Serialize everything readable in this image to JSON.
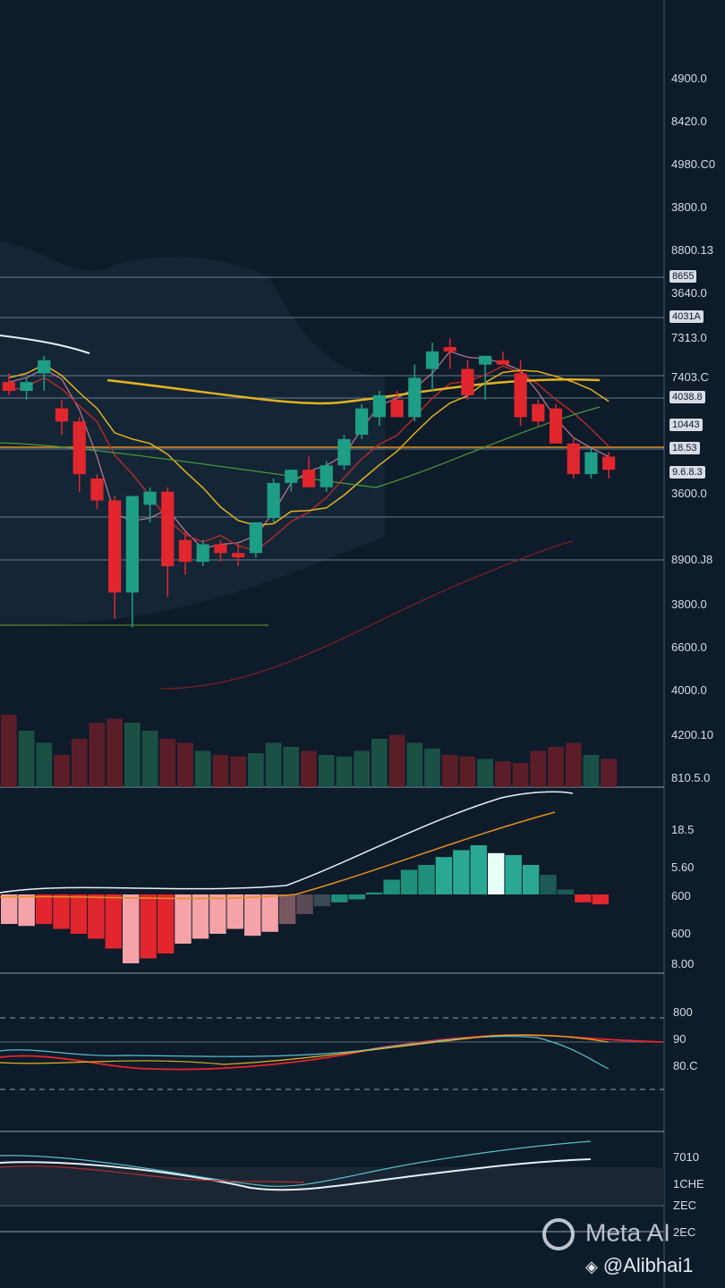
{
  "chart_data": [
    {
      "type": "candlestick",
      "title": "",
      "price_axis_ticks": [
        "4900.0",
        "8420.0",
        "4980.C0",
        "3800.0",
        "8800.13",
        "3640.0",
        "7313.0",
        "7403.C",
        "3600.0",
        "8900.J8",
        "3800.0",
        "6600.0",
        "4000.0",
        "4200.10",
        "810.5.0"
      ],
      "price_tags": [
        "8655",
        "4031A",
        "4038.8",
        "10443",
        "18.53",
        "9.6.8.3"
      ],
      "candles": [
        {
          "o": 0.72,
          "h": 0.74,
          "l": 0.69,
          "c": 0.7,
          "dir": "down"
        },
        {
          "o": 0.7,
          "h": 0.73,
          "l": 0.68,
          "c": 0.72,
          "dir": "up"
        },
        {
          "o": 0.74,
          "h": 0.78,
          "l": 0.7,
          "c": 0.77,
          "dir": "up"
        },
        {
          "o": 0.66,
          "h": 0.68,
          "l": 0.6,
          "c": 0.63,
          "dir": "down"
        },
        {
          "o": 0.63,
          "h": 0.64,
          "l": 0.47,
          "c": 0.51,
          "dir": "down"
        },
        {
          "o": 0.5,
          "h": 0.51,
          "l": 0.43,
          "c": 0.45,
          "dir": "down"
        },
        {
          "o": 0.45,
          "h": 0.46,
          "l": 0.18,
          "c": 0.24,
          "dir": "down"
        },
        {
          "o": 0.24,
          "h": 0.46,
          "l": 0.16,
          "c": 0.46,
          "dir": "up"
        },
        {
          "o": 0.44,
          "h": 0.48,
          "l": 0.4,
          "c": 0.47,
          "dir": "up"
        },
        {
          "o": 0.47,
          "h": 0.48,
          "l": 0.23,
          "c": 0.3,
          "dir": "down"
        },
        {
          "o": 0.36,
          "h": 0.38,
          "l": 0.28,
          "c": 0.31,
          "dir": "down"
        },
        {
          "o": 0.31,
          "h": 0.36,
          "l": 0.3,
          "c": 0.35,
          "dir": "up"
        },
        {
          "o": 0.35,
          "h": 0.36,
          "l": 0.31,
          "c": 0.33,
          "dir": "down"
        },
        {
          "o": 0.33,
          "h": 0.35,
          "l": 0.3,
          "c": 0.32,
          "dir": "down"
        },
        {
          "o": 0.33,
          "h": 0.4,
          "l": 0.32,
          "c": 0.4,
          "dir": "up"
        },
        {
          "o": 0.41,
          "h": 0.5,
          "l": 0.4,
          "c": 0.49,
          "dir": "up"
        },
        {
          "o": 0.49,
          "h": 0.52,
          "l": 0.47,
          "c": 0.52,
          "dir": "up"
        },
        {
          "o": 0.52,
          "h": 0.55,
          "l": 0.48,
          "c": 0.48,
          "dir": "down"
        },
        {
          "o": 0.48,
          "h": 0.54,
          "l": 0.47,
          "c": 0.53,
          "dir": "up"
        },
        {
          "o": 0.53,
          "h": 0.6,
          "l": 0.52,
          "c": 0.59,
          "dir": "up"
        },
        {
          "o": 0.6,
          "h": 0.67,
          "l": 0.59,
          "c": 0.66,
          "dir": "up"
        },
        {
          "o": 0.64,
          "h": 0.7,
          "l": 0.62,
          "c": 0.69,
          "dir": "up"
        },
        {
          "o": 0.68,
          "h": 0.7,
          "l": 0.64,
          "c": 0.64,
          "dir": "down"
        },
        {
          "o": 0.64,
          "h": 0.76,
          "l": 0.63,
          "c": 0.73,
          "dir": "up"
        },
        {
          "o": 0.75,
          "h": 0.81,
          "l": 0.7,
          "c": 0.79,
          "dir": "up"
        },
        {
          "o": 0.8,
          "h": 0.82,
          "l": 0.75,
          "c": 0.79,
          "dir": "down"
        },
        {
          "o": 0.75,
          "h": 0.77,
          "l": 0.68,
          "c": 0.69,
          "dir": "down"
        },
        {
          "o": 0.76,
          "h": 0.78,
          "l": 0.68,
          "c": 0.78,
          "dir": "up"
        },
        {
          "o": 0.77,
          "h": 0.79,
          "l": 0.76,
          "c": 0.76,
          "dir": "down"
        },
        {
          "o": 0.74,
          "h": 0.77,
          "l": 0.62,
          "c": 0.64,
          "dir": "down"
        },
        {
          "o": 0.67,
          "h": 0.68,
          "l": 0.62,
          "c": 0.63,
          "dir": "down"
        },
        {
          "o": 0.66,
          "h": 0.67,
          "l": 0.58,
          "c": 0.58,
          "dir": "down"
        },
        {
          "o": 0.58,
          "h": 0.59,
          "l": 0.5,
          "c": 0.51,
          "dir": "down"
        },
        {
          "o": 0.51,
          "h": 0.57,
          "l": 0.5,
          "c": 0.56,
          "dir": "up"
        },
        {
          "o": 0.55,
          "h": 0.56,
          "l": 0.5,
          "c": 0.52,
          "dir": "down"
        }
      ],
      "volume_axis_ticks": [
        "4200.10",
        "810.5.0"
      ]
    },
    {
      "type": "bar",
      "title": "",
      "axis_ticks": [
        "18.5",
        "5.60",
        "600",
        "600",
        "8.00"
      ],
      "values": [
        -0.3,
        -0.32,
        -0.3,
        -0.35,
        -0.4,
        -0.45,
        -0.55,
        -0.7,
        -0.65,
        -0.6,
        -0.5,
        -0.45,
        -0.4,
        -0.35,
        -0.42,
        -0.38,
        -0.3,
        -0.2,
        -0.12,
        -0.08,
        -0.05,
        0.02,
        0.15,
        0.25,
        0.3,
        0.38,
        0.45,
        0.5,
        0.42,
        0.4,
        0.3,
        0.2,
        0.05,
        -0.08,
        -0.1
      ],
      "colors": [
        "#f5a3a8",
        "#f5a3a8",
        "#e2262d",
        "#e2262d",
        "#e2262d",
        "#e2262d",
        "#e2262d",
        "#f5a3a8",
        "#e2262d",
        "#e2262d",
        "#f5a3a8",
        "#f5a3a8",
        "#f5a3a8",
        "#f5a3a8",
        "#f5a3a8",
        "#f5a3a8",
        "#7a5660",
        "#5a4a55",
        "#3a4a55",
        "#1f8f7a",
        "#1f8f7a",
        "#1f8f7a",
        "#1f8f7a",
        "#1f8f7a",
        "#1f8f7a",
        "#2aa893",
        "#2aa893",
        "#2aa893",
        "#eafff8",
        "#2aa893",
        "#2aa893",
        "#1d5a55",
        "#1d5a55",
        "#e2262d",
        "#e2262d"
      ]
    },
    {
      "type": "line",
      "title": "",
      "axis_ticks": [
        "800",
        "90",
        "80.C"
      ]
    },
    {
      "type": "line",
      "title": "",
      "axis_ticks": [
        "7010",
        "1CHE",
        "ZEC",
        "2EC"
      ]
    }
  ],
  "watermark": {
    "brand": "Meta AI",
    "handle": "@Alibhai1"
  },
  "colors": {
    "up": "#1f9e87",
    "down": "#e2262d",
    "bg": "#0d1b2a",
    "grid": "#8fa0b3",
    "ma_yellow": "#e3b220",
    "ma_red": "#b12b2b",
    "ma_pink": "#e08aa0",
    "ma_white": "#e8eef4",
    "ma_green": "#4a9a3a"
  }
}
